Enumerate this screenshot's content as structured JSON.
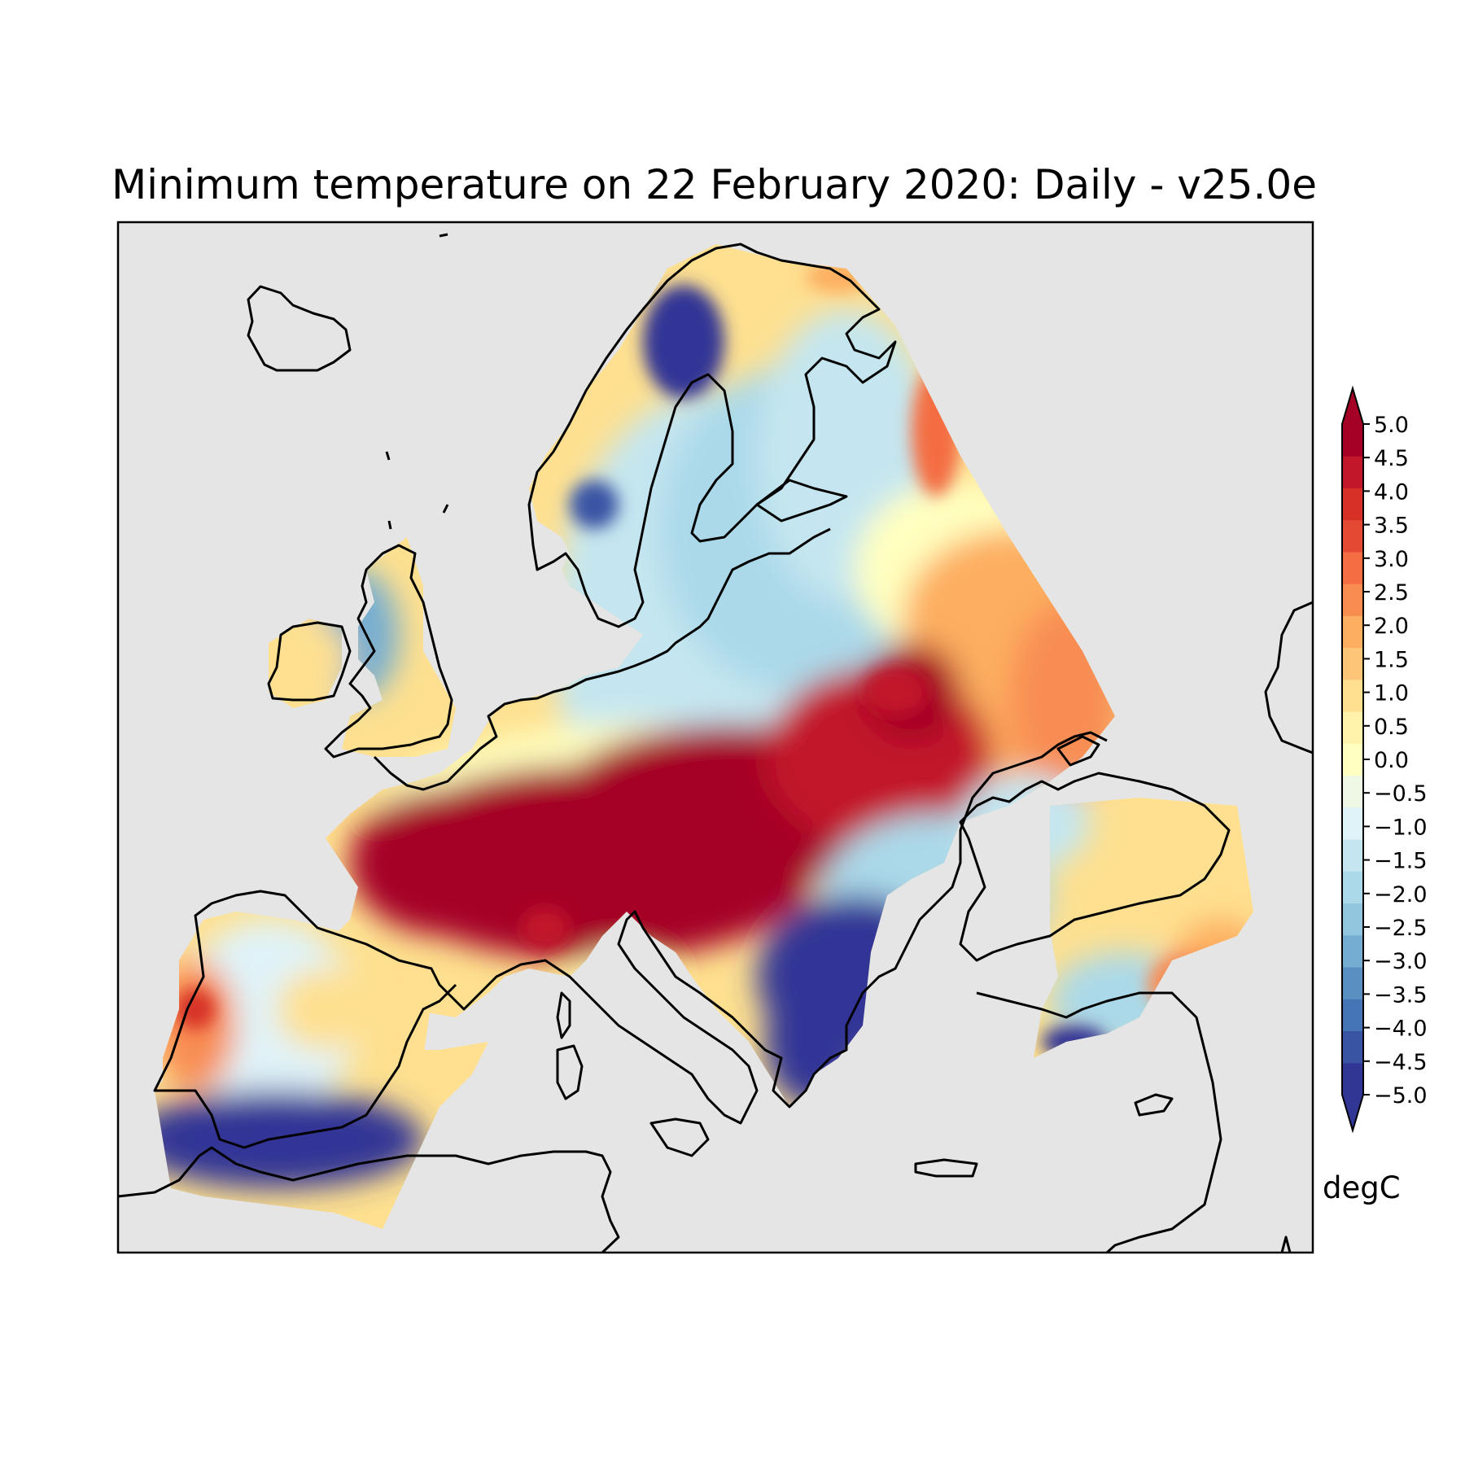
{
  "title": "Minimum temperature on 22 February 2020: Daily - v25.0e",
  "colors": {
    "ocean": "#e5e5e5",
    "coastline": "#000000",
    "frame": "#000000"
  },
  "colorbar": {
    "unit_label": "degC",
    "min": -5.0,
    "max": 5.0,
    "step": 0.5,
    "extend": "both",
    "tick_labels": [
      "5.0",
      "4.5",
      "4.0",
      "3.5",
      "3.0",
      "2.5",
      "2.0",
      "1.5",
      "1.0",
      "0.5",
      "0.0",
      "−0.5",
      "−1.0",
      "−1.5",
      "−2.0",
      "−2.5",
      "−3.0",
      "−3.5",
      "−4.0",
      "−4.5",
      "−5.0"
    ],
    "colors": [
      "#313695",
      "#3a54a4",
      "#4575b4",
      "#5a8fc2",
      "#74add1",
      "#92c5de",
      "#abd9e9",
      "#c5e6f0",
      "#e0f3f8",
      "#eef8e5",
      "#ffffbf",
      "#fff2aa",
      "#fee090",
      "#fdc577",
      "#fdae61",
      "#f88d52",
      "#f46d43",
      "#e34933",
      "#d73027",
      "#c2162b",
      "#a50026"
    ],
    "under_color": "#313695",
    "over_color": "#a50026"
  },
  "map": {
    "projection": "Lambert conformal, Europe",
    "variable": "Minimum temperature",
    "date": "22 February 2020",
    "regions": [
      {
        "region": "northern Scandinavia mountains",
        "color": "#313695"
      },
      {
        "region": "Finland and northern Russia",
        "color": "#92c5de"
      },
      {
        "region": "Baltic states and western Russia",
        "color": "#fee090"
      },
      {
        "region": "Central Europe, France, Germany, Poland",
        "color": "#a50026"
      },
      {
        "region": "Great Britain",
        "color": "#74add1"
      },
      {
        "region": "Ireland",
        "color": "#fee090"
      },
      {
        "region": "Iberian Peninsula",
        "color": "#e0f3f8"
      },
      {
        "region": "Balkans and Greece",
        "color": "#313695"
      },
      {
        "region": "Ukraine and southwest Russia",
        "color": "#e0f3f8"
      },
      {
        "region": "Turkey",
        "color": "#abd9e9"
      },
      {
        "region": "North Africa (Maghreb)",
        "color": "#313695"
      }
    ]
  }
}
